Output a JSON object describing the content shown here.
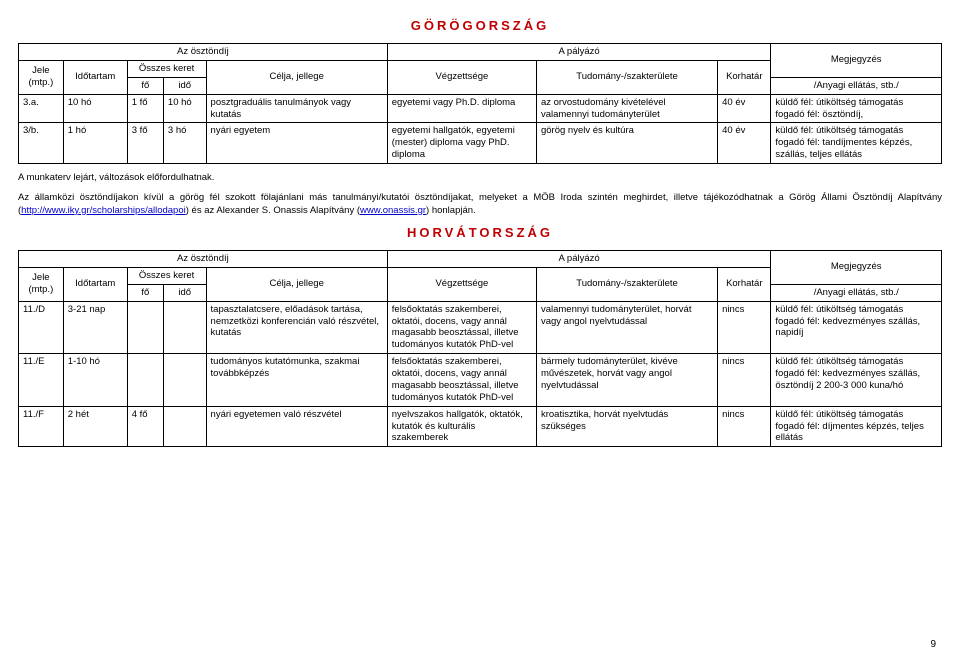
{
  "section1": {
    "title": "GÖRÖGORSZÁG",
    "head": {
      "osztondij": "Az ösztöndíj",
      "palyazo": "A pályázó",
      "megjegyzes": "Megjegyzés",
      "jele": "Jele (mtp.)",
      "idotartam": "Időtartam",
      "osszes": "Összes keret",
      "fo": "fő",
      "ido": "idő",
      "celja": "Célja, jellege",
      "vegzettsege": "Végzettsége",
      "tudomany": "Tudomány-/szakterülete",
      "korhatar": "Korhatár",
      "anyagi": "/Anyagi ellátás, stb./"
    },
    "rows": [
      {
        "jele": "3.a.",
        "idotartam": "10 hó",
        "fo": "1 fő",
        "ido": "10 hó",
        "celja": "posztgraduális tanulmányok vagy kutatás",
        "veg": "egyetemi vagy Ph.D. diploma",
        "tud": "az orvostudomány kivételével valamennyi tudományterület",
        "korhatar": "40 év",
        "meg": "küldő fél: útiköltség támogatás\nfogadó fél: ösztöndíj,"
      },
      {
        "jele": "3/b.",
        "idotartam": "1 hó",
        "fo": "3 fő",
        "ido": "3 hó",
        "celja": "nyári egyetem",
        "veg": "egyetemi hallgatók, egyetemi (mester) diploma vagy PhD. diploma",
        "tud": "görög nyelv és kultúra",
        "korhatar": "40 év",
        "meg": "küldő fél: útiköltség támogatás\nfogadó fél: tandíjmentes képzés, szállás, teljes ellátás"
      }
    ],
    "note1": "A munkaterv lejárt, változások előfordulhatnak.",
    "paragraph_parts": {
      "p1": "Az államközi ösztöndíjakon kívül a görög fél szokott fölajánlani más tanulmányi/kutatói ösztöndíjakat, melyeket a MÖB Iroda szintén meghirdet, illetve tájékozódhatnak a Görög Állami Ösztöndíj Alapítvány (",
      "link1": "http://www.iky.gr/scholarships/allodapoi",
      "p2": ") és az Alexander S. Onassis Alapítvány (",
      "link2": "www.onassis.gr",
      "p3": ") honlapján."
    }
  },
  "section2": {
    "title": "HORVÁTORSZÁG",
    "head": {
      "osztondij": "Az ösztöndíj",
      "palyazo": "A pályázó",
      "megjegyzes": "Megjegyzés",
      "jele": "Jele (mtp.)",
      "idotartam": "Időtartam",
      "osszes": "Összes keret",
      "fo": "fő",
      "ido": "idő",
      "celja": "Célja, jellege",
      "vegzettsege": "Végzettsége",
      "tudomany": "Tudomány-/szakterülete",
      "korhatar": "Korhatár",
      "anyagi": "/Anyagi ellátás, stb./"
    },
    "rows": [
      {
        "jele": "11./D",
        "idotartam": "3-21 nap",
        "fo": "",
        "ido": "",
        "celja": "tapasztalatcsere, előadások tartása, nemzetközi konferencián való részvétel, kutatás",
        "veg": "felsőoktatás szakemberei, oktatói, docens, vagy annál magasabb beosztással, illetve tudományos kutatók PhD-vel",
        "tud": "valamennyi tudományterület, horvát vagy angol nyelvtudással",
        "korhatar": "nincs",
        "meg": "küldő fél: útiköltség támogatás\nfogadó fél: kedvezményes szállás, napidíj"
      },
      {
        "jele": "11./E",
        "idotartam": "1-10 hó",
        "fo": "",
        "ido": "",
        "celja": "tudományos kutatómunka, szakmai továbbképzés",
        "veg": "felsőoktatás szakemberei, oktatói, docens, vagy annál magasabb beosztással, illetve tudományos kutatók PhD-vel",
        "tud": "bármely tudományterület, kivéve művészetek, horvát vagy angol nyelvtudással",
        "korhatar": "nincs",
        "meg": "küldő fél: útiköltség támogatás\nfogadó fél: kedvezményes szállás, ösztöndíj 2 200-3 000 kuna/hó"
      },
      {
        "jele": "11./F",
        "idotartam": "2 hét",
        "fo": "4 fő",
        "ido": "",
        "celja": "nyári egyetemen való részvétel",
        "veg": "nyelvszakos hallgatók, oktatók, kutatók és kulturális szakemberek",
        "tud": "kroatisztika, horvát nyelvtudás szükséges",
        "korhatar": "nincs",
        "meg": "küldő fél: útiköltség támogatás\nfogadó fél: díjmentes képzés, teljes ellátás"
      }
    ]
  },
  "page_number": "9"
}
